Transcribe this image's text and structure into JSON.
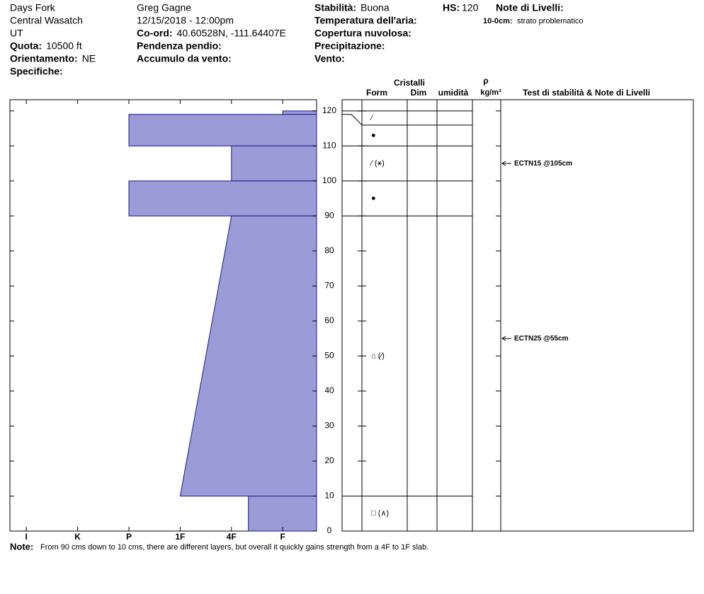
{
  "header": {
    "col1": [
      {
        "text": "Days Fork"
      },
      {
        "text": "Central Wasatch"
      },
      {
        "text": "UT"
      },
      {
        "label": "Quota:",
        "value": "10500 ft"
      },
      {
        "label": "Orientamento:",
        "value": "NE"
      },
      {
        "label": "Specifiche:"
      }
    ],
    "col2": [
      {
        "text": "Greg Gagne"
      },
      {
        "text": "12/15/2018 - 12:00pm"
      },
      {
        "label": "Co-ord:",
        "value": "40.60528N, -111.64407E"
      },
      {
        "label": "Pendenza pendio:"
      },
      {
        "label": "Accumulo da vento:"
      }
    ],
    "col3": [
      {
        "label": "Stabilità:",
        "value": "Buona"
      },
      {
        "label": "Temperatura dell'aria:"
      },
      {
        "label": "Copertura nuvolosa:"
      },
      {
        "label": "Precipitazione:"
      },
      {
        "label": "Vento:"
      }
    ],
    "hs": {
      "label": "HS:",
      "value": 120
    },
    "layer_notes": {
      "title": "Note di Livelli:",
      "items": [
        {
          "label": "10-0cm:",
          "value": "strato problematico"
        }
      ]
    }
  },
  "chart_data": {
    "type": "snow-profile",
    "ylim": [
      0,
      123.2
    ],
    "yticks": [
      0,
      10,
      20,
      30,
      40,
      50,
      60,
      70,
      80,
      90,
      100,
      110,
      120
    ],
    "xlim": [
      6.32,
      0.34
    ],
    "xticks": [
      {
        "value": 6,
        "label": "I"
      },
      {
        "value": 5,
        "label": "K"
      },
      {
        "value": 4,
        "label": "P"
      },
      {
        "value": 3,
        "label": "1F"
      },
      {
        "value": 2,
        "label": "4F"
      },
      {
        "value": 1,
        "label": "F"
      }
    ],
    "color": "#9b9bd8",
    "layers": [
      {
        "top": 120,
        "bottom": 119,
        "hardness_top": 1,
        "hardness_bottom": 1,
        "form": "⁄"
      },
      {
        "top": 119,
        "bottom": 110,
        "hardness_top": 4,
        "hardness_bottom": 4,
        "form": "●"
      },
      {
        "top": 110,
        "bottom": 100,
        "hardness_top": 2,
        "hardness_bottom": 2,
        "form": "⁄ (⚹)"
      },
      {
        "top": 100,
        "bottom": 90,
        "hardness_top": 4,
        "hardness_bottom": 4,
        "form": "●"
      },
      {
        "top": 90,
        "bottom": 10,
        "hardness_top": 2,
        "hardness_bottom": 3,
        "form": "⌂ (⁄)"
      },
      {
        "top": 10,
        "bottom": 0,
        "hardness_top": 1.67,
        "hardness_bottom": 1.67,
        "form": "□ (∧)"
      }
    ],
    "tests": [
      {
        "label": "ECTN15 @105cm",
        "height": 105
      },
      {
        "label": "ECTN25 @55cm",
        "height": 55
      }
    ],
    "columns": {
      "group": "Cristalli",
      "form": "Form",
      "dim": "Dim",
      "moisture": "umidità",
      "rho": "ρ",
      "density_unit": "kg/m³",
      "tests": "Test di stabilità & Note di Livelli"
    },
    "note": {
      "label": "Note:",
      "text": "From 90 cms down to 10 cms, there are different layers, but overall it quickly gains strength from a 4F to 1F slab."
    }
  }
}
